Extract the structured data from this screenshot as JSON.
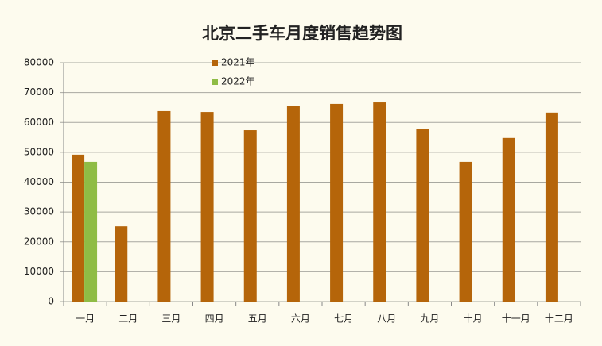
{
  "chart_data": {
    "type": "bar",
    "title": "北京二手车月度销售趋势图",
    "categories": [
      "一月",
      "二月",
      "三月",
      "四月",
      "五月",
      "六月",
      "七月",
      "八月",
      "九月",
      "十月",
      "十一月",
      "十二月"
    ],
    "series": [
      {
        "name": "2021年",
        "color": "#b5650a",
        "values": [
          49200,
          25200,
          63800,
          63500,
          57400,
          65400,
          66200,
          66700,
          57700,
          46800,
          54800,
          63300
        ]
      },
      {
        "name": "2022年",
        "color": "#8fbc45",
        "values": [
          46800,
          null,
          null,
          null,
          null,
          null,
          null,
          null,
          null,
          null,
          null,
          null
        ]
      }
    ],
    "ylim": [
      0,
      80000
    ],
    "yticks": [
      0,
      10000,
      20000,
      30000,
      40000,
      50000,
      60000,
      70000,
      80000
    ],
    "grid": true,
    "legend": "top"
  }
}
